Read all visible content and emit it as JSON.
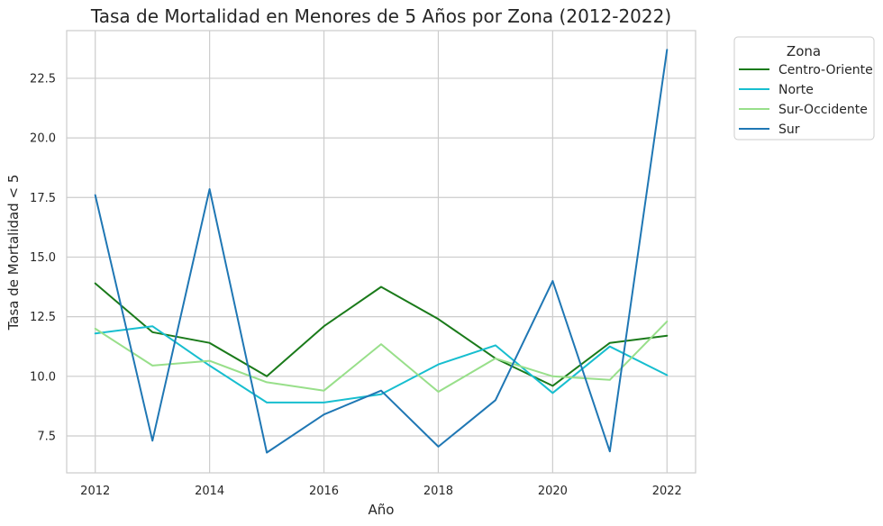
{
  "chart_data": {
    "type": "line",
    "title": "Tasa de Mortalidad en Menores de 5 Años por Zona (2012-2022)",
    "xlabel": "Año",
    "ylabel": "Tasa de Mortalidad < 5",
    "x": [
      2012,
      2013,
      2014,
      2015,
      2016,
      2017,
      2018,
      2019,
      2020,
      2021,
      2022
    ],
    "xlim": [
      2011.5,
      2022.5
    ],
    "ylim": [
      5.95,
      24.5
    ],
    "xticks": [
      2012,
      2014,
      2016,
      2018,
      2020,
      2022
    ],
    "yticks": [
      7.5,
      10.0,
      12.5,
      15.0,
      17.5,
      20.0,
      22.5
    ],
    "ytick_labels": [
      "7.5",
      "10.0",
      "12.5",
      "15.0",
      "17.5",
      "20.0",
      "22.5"
    ],
    "grid": true,
    "legend": {
      "title": "Zona",
      "placement": "outside-top-right"
    },
    "series": [
      {
        "name": "Centro-Oriente",
        "color": "#1a7a1a",
        "values": [
          13.9,
          11.85,
          11.4,
          10.0,
          12.1,
          13.75,
          12.4,
          10.75,
          9.6,
          11.4,
          11.7
        ]
      },
      {
        "name": "Norte",
        "color": "#17becf",
        "values": [
          11.8,
          12.1,
          10.45,
          8.9,
          8.9,
          9.25,
          10.5,
          11.3,
          9.3,
          11.25,
          10.05
        ]
      },
      {
        "name": "Sur-Occidente",
        "color": "#98df8a",
        "values": [
          12.0,
          10.45,
          10.65,
          9.75,
          9.4,
          11.35,
          9.35,
          10.75,
          10.0,
          9.85,
          12.3
        ]
      },
      {
        "name": "Sur",
        "color": "#1f77b4",
        "values": [
          17.6,
          7.3,
          17.85,
          6.8,
          8.4,
          9.4,
          7.05,
          9.0,
          14.0,
          6.85,
          23.7
        ]
      }
    ]
  }
}
